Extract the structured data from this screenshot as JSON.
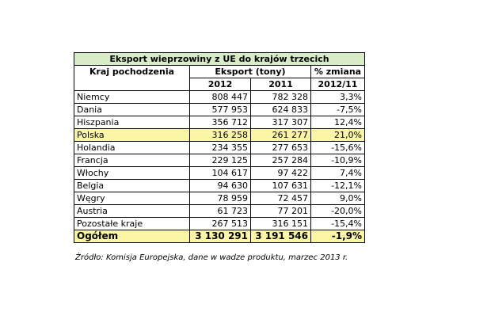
{
  "table": {
    "title": "Eksport wieprzowiny z UE do krajów trzecich",
    "header": {
      "country_col": "Kraj pochodzenia",
      "export_group": "Eksport (tony)",
      "col_2012": "2012",
      "col_2011": "2011",
      "col_change_line1": "% zmiana",
      "col_change_line2": "2012/11"
    },
    "rows": [
      {
        "country": "Niemcy",
        "v2012": "808 447",
        "v2011": "782 328",
        "change": "3,3%"
      },
      {
        "country": "Dania",
        "v2012": "577 953",
        "v2011": "624 833",
        "change": "-7,5%"
      },
      {
        "country": "Hiszpania",
        "v2012": "356 712",
        "v2011": "317 307",
        "change": "12,4%"
      },
      {
        "country": "Polska",
        "v2012": "316 258",
        "v2011": "261 277",
        "change": "21,0%"
      },
      {
        "country": "Holandia",
        "v2012": "234 355",
        "v2011": "277 653",
        "change": "-15,6%"
      },
      {
        "country": "Francja",
        "v2012": "229 125",
        "v2011": "257 284",
        "change": "-10,9%"
      },
      {
        "country": "Włochy",
        "v2012": "104 617",
        "v2011": "97 422",
        "change": "7,4%"
      },
      {
        "country": "Belgia",
        "v2012": "94 630",
        "v2011": "107 631",
        "change": "-12,1%"
      },
      {
        "country": "Węgry",
        "v2012": "78 959",
        "v2011": "72 457",
        "change": "9,0%"
      },
      {
        "country": "Austria",
        "v2012": "61 723",
        "v2011": "77 201",
        "change": "-20,0%"
      },
      {
        "country": "Pozostałe kraje",
        "v2012": "267 513",
        "v2011": "316 151",
        "change": "-15,4%"
      }
    ],
    "total": {
      "country": "Ogółem",
      "v2012": "3 130 291",
      "v2011": "3 191 546",
      "change": "-1,9%"
    },
    "colors": {
      "title_bg": "#d9ecc8",
      "highlight_bg": "#fbf6a6"
    }
  },
  "source": "Źródło: Komisja Europejska, dane w wadze produktu, marzec 2013 r."
}
